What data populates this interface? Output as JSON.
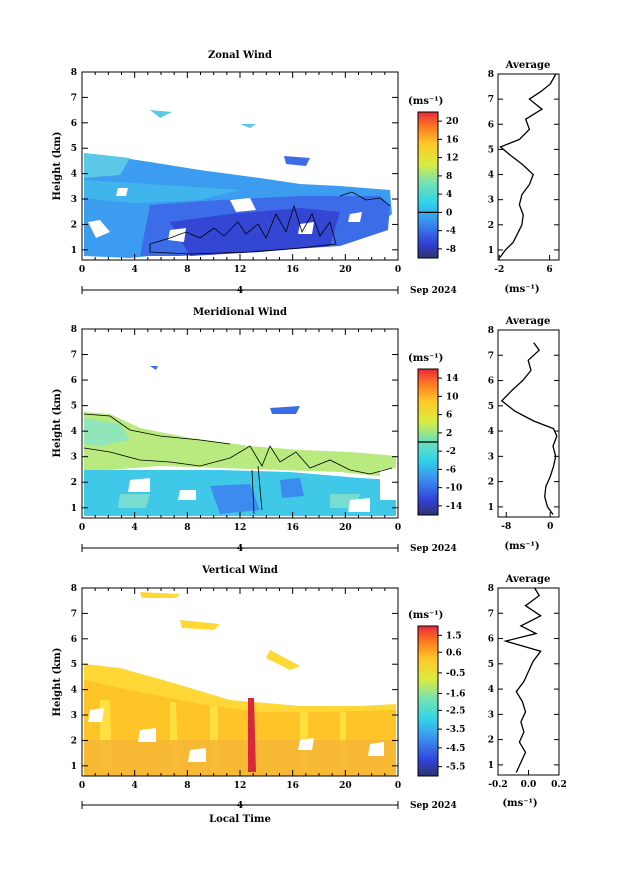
{
  "chart_data": [
    {
      "type": "heatmap",
      "title": "Zonal Wind",
      "xlabel": "",
      "ylabel": "Height (km)",
      "xlim": [
        0,
        24
      ],
      "ylim": [
        0.6,
        8
      ],
      "x_ticks": [
        "0",
        "4",
        "8",
        "12",
        "16",
        "20",
        "0"
      ],
      "y_ticks": [
        "1",
        "2",
        "3",
        "4",
        "5",
        "6",
        "7",
        "8"
      ],
      "day_label": "4",
      "date_label": "Sep 2024",
      "colorbar": {
        "unit": "(ms⁻¹)",
        "range": [
          -10,
          22
        ],
        "ticks": [
          "20",
          "16",
          "12",
          "8",
          "4",
          "0",
          "-4",
          "-8"
        ],
        "contour_level": "0"
      },
      "average": {
        "title": "Average",
        "xlabel": "(ms⁻¹)",
        "x_ticks": [
          "-2",
          "6"
        ],
        "xlim": [
          -2.2,
          7.5
        ],
        "height_km": [
          0.7,
          1.0,
          1.3,
          1.6,
          2.0,
          2.4,
          2.8,
          3.2,
          3.6,
          4.0,
          4.4,
          4.8,
          5.1,
          5.4,
          5.8,
          6.2,
          6.6,
          7.0,
          7.3,
          7.6,
          8.0
        ],
        "value": [
          -1.9,
          -1.0,
          0.2,
          0.8,
          1.6,
          1.8,
          1.2,
          1.6,
          2.8,
          3.4,
          1.7,
          -0.4,
          -1.8,
          1.2,
          2.8,
          2.2,
          4.8,
          2.8,
          4.6,
          6.1,
          7.0
        ]
      }
    },
    {
      "type": "heatmap",
      "title": "Meridional Wind",
      "xlabel": "",
      "ylabel": "Height (km)",
      "xlim": [
        0,
        24
      ],
      "ylim": [
        0.6,
        8
      ],
      "x_ticks": [
        "0",
        "4",
        "8",
        "12",
        "16",
        "20",
        "0"
      ],
      "y_ticks": [
        "1",
        "2",
        "3",
        "4",
        "5",
        "6",
        "7",
        "8"
      ],
      "day_label": "4",
      "date_label": "Sep 2024",
      "colorbar": {
        "unit": "(ms⁻¹)",
        "range": [
          -16,
          16
        ],
        "ticks": [
          "14",
          "10",
          "6",
          "2",
          "-2",
          "-6",
          "-10",
          "-14"
        ],
        "contour_level": "0"
      },
      "average": {
        "title": "Average",
        "xlabel": "(ms⁻¹)",
        "x_ticks": [
          "-8",
          "0"
        ],
        "xlim": [
          -9.5,
          1.6
        ],
        "height_km": [
          0.7,
          1.0,
          1.4,
          1.8,
          2.2,
          2.6,
          3.0,
          3.4,
          3.8,
          4.1,
          4.4,
          4.8,
          5.2,
          5.6,
          6.0,
          6.4,
          6.8,
          7.2,
          7.5
        ],
        "value": [
          0.5,
          -0.5,
          -1.0,
          -0.8,
          0.0,
          0.6,
          1.0,
          0.5,
          1.2,
          0.6,
          -3.0,
          -6.5,
          -8.8,
          -7.0,
          -5.0,
          -3.5,
          -4.0,
          -2.0,
          -3.0
        ]
      }
    },
    {
      "type": "heatmap",
      "title": "Vertical Wind",
      "xlabel": "Local Time",
      "ylabel": "Height (km)",
      "xlim": [
        0,
        24
      ],
      "ylim": [
        0.6,
        8
      ],
      "x_ticks": [
        "0",
        "4",
        "8",
        "12",
        "16",
        "20",
        "0"
      ],
      "y_ticks": [
        "1",
        "2",
        "3",
        "4",
        "5",
        "6",
        "7",
        "8"
      ],
      "day_label": "4",
      "date_label": "Sep 2024",
      "colorbar": {
        "unit": "(ms⁻¹)",
        "range": [
          -6.0,
          2.0
        ],
        "ticks": [
          "1.5",
          "0.6",
          "-0.5",
          "-1.6",
          "-2.5",
          "-3.5",
          "-4.5",
          "-5.5"
        ]
      },
      "average": {
        "title": "Average",
        "xlabel": "(ms⁻¹)",
        "x_ticks": [
          "-0.2",
          "0.0",
          "0.2"
        ],
        "xlim": [
          -0.2,
          0.2
        ],
        "height_km": [
          0.7,
          1.1,
          1.5,
          1.9,
          2.3,
          2.7,
          3.1,
          3.5,
          3.9,
          4.3,
          4.7,
          5.1,
          5.5,
          5.9,
          6.2,
          6.5,
          6.9,
          7.3,
          7.7,
          8.0
        ],
        "value": [
          -0.08,
          -0.05,
          -0.02,
          -0.06,
          -0.03,
          -0.05,
          -0.02,
          -0.04,
          -0.08,
          -0.03,
          0.0,
          0.03,
          0.08,
          -0.15,
          0.05,
          -0.05,
          0.08,
          -0.02,
          0.07,
          0.04
        ]
      }
    }
  ]
}
